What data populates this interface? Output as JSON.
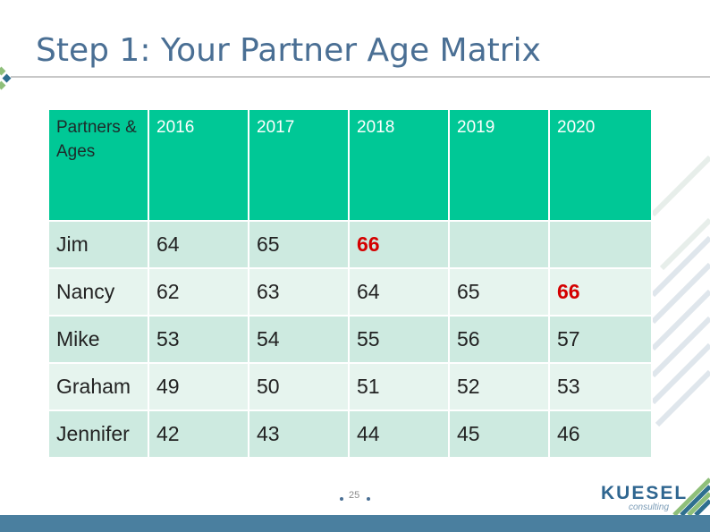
{
  "slide": {
    "title": "Step 1: Your Partner Age Matrix",
    "page_number": "25"
  },
  "table": {
    "header": [
      "Partners & Ages",
      "2016",
      "2017",
      "2018",
      "2019",
      "2020"
    ],
    "rows": [
      {
        "name": "Jim",
        "values": [
          "64",
          "65",
          "66",
          "",
          ""
        ]
      },
      {
        "name": "Nancy",
        "values": [
          "62",
          "63",
          "64",
          "65",
          "66"
        ]
      },
      {
        "name": "Mike",
        "values": [
          "53",
          "54",
          "55",
          "56",
          "57"
        ]
      },
      {
        "name": "Graham",
        "values": [
          "49",
          "50",
          "51",
          "52",
          "53"
        ]
      },
      {
        "name": "Jennifer",
        "values": [
          "42",
          "43",
          "44",
          "45",
          "46"
        ]
      }
    ],
    "highlight_value": "66"
  },
  "logo": {
    "name": "KUESEL",
    "tagline": "consulting"
  },
  "colors": {
    "header_bg": "#00c896",
    "row_dark": "#cdeae0",
    "row_light": "#e6f4ee",
    "highlight": "#d40000",
    "title": "#4a6f94",
    "footer": "#4a7f9f"
  }
}
